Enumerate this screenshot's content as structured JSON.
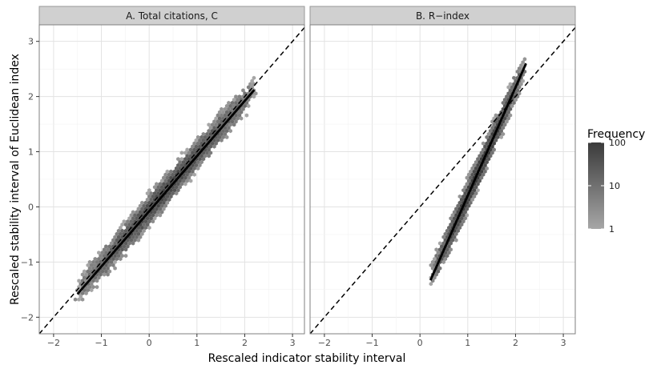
{
  "chart_data": {
    "type": "scatter",
    "subtype": "hexbin-faceted",
    "xlabel": "Rescaled indicator stability interval",
    "ylabel": "Rescaled stability interval of Euclidean index",
    "xlim": [
      -2.3,
      3.25
    ],
    "ylim": [
      -2.3,
      3.3
    ],
    "xticks": [
      -2,
      -1,
      0,
      1,
      2,
      3
    ],
    "yticks": [
      -2,
      -1,
      0,
      1,
      2,
      3
    ],
    "grid": true,
    "legend": {
      "title": "Frequency",
      "scale": "log",
      "labels": [
        "100",
        "10",
        "1"
      ],
      "values": [
        100,
        10,
        1
      ],
      "color_low": "#a6a6a6",
      "color_high": "#3a3a3a",
      "placement": "right"
    },
    "colors": {
      "panel_bg": "#ffffff",
      "strip_bg": "#d0d0d0",
      "grid": "#ebebeb",
      "line": "#000000"
    },
    "panels": [
      {
        "title": "A. Total citations, C",
        "reference_line": {
          "label": "identity",
          "slope": 1,
          "intercept": 0
        },
        "fit_line": {
          "x": [
            -1.5,
            2.2
          ],
          "y": [
            -1.58,
            2.12
          ]
        },
        "hex_cloud": {
          "x_range": [
            -1.55,
            2.25
          ],
          "slope": 1.0,
          "intercept": -0.06,
          "spread": 0.2
        }
      },
      {
        "title": "B. R−index",
        "reference_line": {
          "label": "identity",
          "slope": 1,
          "intercept": 0
        },
        "fit_line": {
          "x": [
            0.22,
            2.22
          ],
          "y": [
            -1.33,
            2.6
          ]
        },
        "hex_cloud": {
          "x_range": [
            0.22,
            2.2
          ],
          "slope": 1.96,
          "intercept": -1.76,
          "spread": 0.18
        }
      }
    ]
  }
}
